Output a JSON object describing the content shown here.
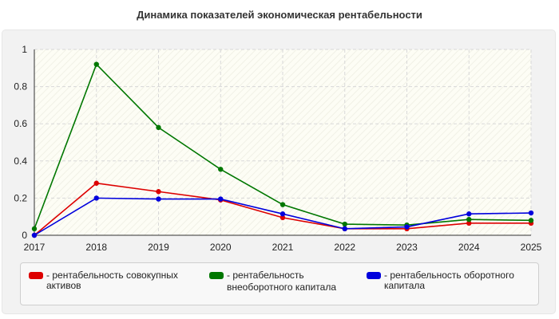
{
  "chart_data": {
    "type": "line",
    "title": "Динамика показателей экономическая рентабельности",
    "x": [
      "2017",
      "2018",
      "2019",
      "2020",
      "2021",
      "2022",
      "2023",
      "2024",
      "2025"
    ],
    "ylim": [
      0,
      1
    ],
    "yticks": [
      "0",
      "0.2",
      "0.4",
      "0.6",
      "0.8",
      "1"
    ],
    "grid": true,
    "legend_position": "bottom",
    "series": [
      {
        "name": "рентабельность совокупных активов",
        "color": "#dd0000",
        "values": [
          0.0,
          0.28,
          0.235,
          0.19,
          0.095,
          0.035,
          0.035,
          0.065,
          0.065
        ]
      },
      {
        "name": "рентабельность внеоборотного капитала",
        "color": "#007700",
        "values": [
          0.035,
          0.92,
          0.58,
          0.355,
          0.165,
          0.06,
          0.055,
          0.085,
          0.08
        ]
      },
      {
        "name": "рентабельность оборотного капитала",
        "color": "#0000dd",
        "values": [
          0.0,
          0.2,
          0.195,
          0.195,
          0.115,
          0.035,
          0.045,
          0.115,
          0.12
        ]
      }
    ]
  },
  "legend": [
    {
      "prefix": "-",
      "line1": "рентабельность совокупных",
      "line2": "активов"
    },
    {
      "prefix": "-",
      "line1": "рентабельность",
      "line2": "внеоборотного капитала"
    },
    {
      "prefix": "-",
      "line1": "рентабельность оборотного",
      "line2": "капитала"
    }
  ]
}
